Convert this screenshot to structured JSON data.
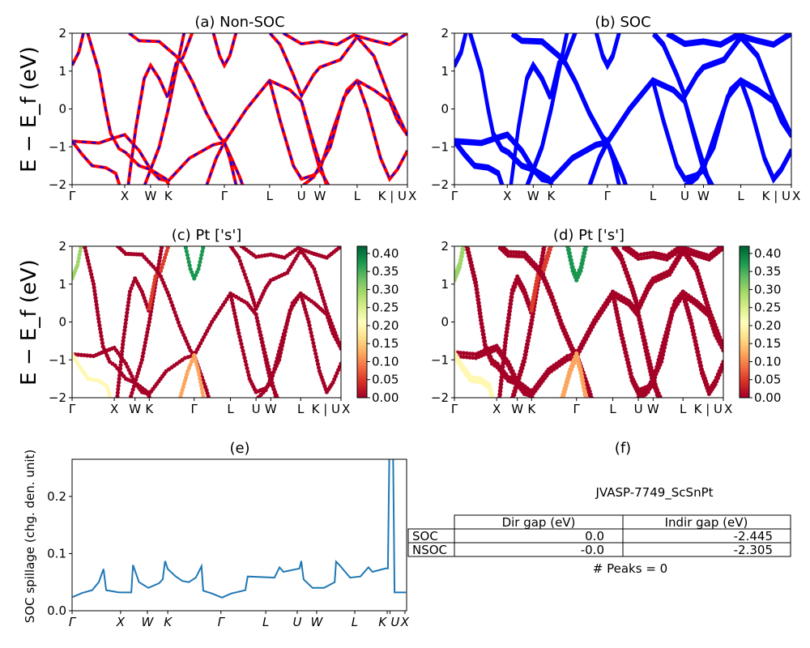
{
  "chart_data": {
    "type": "line",
    "band_structure": {
      "ylabel": "E − E_f (eV)",
      "ylim": [
        -2,
        2
      ],
      "yticks": [
        -2,
        -1,
        0,
        1,
        2
      ],
      "kticks": [
        0,
        0.157,
        0.234,
        0.287,
        0.454,
        0.589,
        0.684,
        0.739,
        0.85,
        0.965,
        1.0
      ],
      "klabels": [
        "Γ",
        "X",
        "W",
        "K",
        "Γ",
        "L",
        "U",
        "W",
        "L",
        "K | U",
        "X"
      ],
      "bands": [
        {
          "w": 0.0,
          "pts": [
            [
              0,
              -0.85
            ],
            [
              0.08,
              -0.9
            ],
            [
              0.12,
              -0.78
            ],
            [
              0.157,
              -0.68
            ],
            [
              0.2,
              -1.1
            ],
            [
              0.234,
              -1.6
            ],
            [
              0.26,
              -1.85
            ],
            [
              0.287,
              -1.9
            ],
            [
              0.35,
              -1.3
            ],
            [
              0.42,
              -0.95
            ],
            [
              0.454,
              -0.88
            ],
            [
              0.52,
              0.0
            ],
            [
              0.589,
              0.75
            ],
            [
              0.65,
              0.5
            ],
            [
              0.684,
              0.2
            ],
            [
              0.72,
              -1.0
            ],
            [
              0.739,
              -1.6
            ],
            [
              0.77,
              -2.1
            ]
          ]
        },
        {
          "w": 0.2,
          "pts": [
            [
              0,
              -0.85
            ],
            [
              0.03,
              -1.2
            ],
            [
              0.06,
              -1.5
            ],
            [
              0.1,
              -1.55
            ],
            [
              0.13,
              -1.7
            ],
            [
              0.145,
              -2.1
            ]
          ]
        },
        {
          "w": 0.3,
          "pts": [
            [
              0,
              1.15
            ],
            [
              0.02,
              1.5
            ],
            [
              0.035,
              2.05
            ]
          ]
        },
        {
          "w": 0.0,
          "pts": [
            [
              0.045,
              2.05
            ],
            [
              0.08,
              1.0
            ],
            [
              0.1,
              0.0
            ],
            [
              0.115,
              -0.65
            ],
            [
              0.14,
              -1.05
            ],
            [
              0.16,
              -1.15
            ],
            [
              0.2,
              -1.5
            ],
            [
              0.234,
              -1.6
            ],
            [
              0.28,
              -1.85
            ],
            [
              0.29,
              -2.05
            ]
          ]
        },
        {
          "w": 0.0,
          "pts": [
            [
              0.167,
              -2.05
            ],
            [
              0.19,
              -0.5
            ],
            [
              0.215,
              0.8
            ],
            [
              0.234,
              1.15
            ],
            [
              0.26,
              0.8
            ],
            [
              0.285,
              0.3
            ]
          ]
        },
        {
          "w": 0.0,
          "pts": [
            [
              0.215,
              -2.05
            ],
            [
              0.26,
              -1.0
            ],
            [
              0.287,
              0.0
            ],
            [
              0.31,
              1.0
            ],
            [
              0.335,
              2.05
            ]
          ]
        },
        {
          "w": 0.05,
          "pts": [
            [
              0.287,
              0.35
            ],
            [
              0.31,
              1.2
            ],
            [
              0.33,
              1.35
            ],
            [
              0.36,
              2.05
            ]
          ]
        },
        {
          "w": 0.0,
          "pts": [
            [
              0.17,
              2.0
            ],
            [
              0.2,
              1.8
            ],
            [
              0.26,
              1.78
            ],
            [
              0.31,
              1.4
            ],
            [
              0.33,
              1.2
            ],
            [
              0.36,
              0.7
            ],
            [
              0.4,
              -0.1
            ],
            [
              0.44,
              -0.75
            ],
            [
              0.454,
              -0.88
            ],
            [
              0.5,
              -1.8
            ],
            [
              0.51,
              -2.05
            ]
          ]
        },
        {
          "w": 0.38,
          "pts": [
            [
              0.42,
              2.05
            ],
            [
              0.44,
              1.4
            ],
            [
              0.454,
              1.15
            ],
            [
              0.47,
              1.4
            ],
            [
              0.49,
              2.05
            ]
          ]
        },
        {
          "w": 0.12,
          "pts": [
            [
              0.4,
              -2.05
            ],
            [
              0.43,
              -1.3
            ],
            [
              0.454,
              -0.88
            ],
            [
              0.47,
              -1.3
            ],
            [
              0.49,
              -2.05
            ]
          ]
        },
        {
          "w": 0.0,
          "pts": [
            [
              0.589,
              0.75
            ],
            [
              0.62,
              -0.3
            ],
            [
              0.66,
              -1.5
            ],
            [
              0.684,
              -1.85
            ],
            [
              0.72,
              -1.75
            ],
            [
              0.739,
              -1.6
            ],
            [
              0.78,
              -0.5
            ],
            [
              0.82,
              0.5
            ],
            [
              0.85,
              0.75
            ],
            [
              0.9,
              0.5
            ],
            [
              0.947,
              0.2
            ],
            [
              0.97,
              -0.3
            ],
            [
              1.0,
              -0.7
            ]
          ]
        },
        {
          "w": 0.0,
          "pts": [
            [
              0.59,
              2.0
            ],
            [
              0.62,
              1.7
            ],
            [
              0.66,
              0.9
            ],
            [
              0.684,
              0.35
            ],
            [
              0.72,
              0.9
            ],
            [
              0.739,
              1.1
            ],
            [
              0.8,
              1.3
            ],
            [
              0.85,
              1.9
            ],
            [
              0.9,
              1.4
            ],
            [
              0.947,
              0.3
            ],
            [
              1.0,
              -0.7
            ]
          ]
        },
        {
          "w": 0.0,
          "pts": [
            [
              0.63,
              2.0
            ],
            [
              0.684,
              1.72
            ],
            [
              0.739,
              1.78
            ],
            [
              0.79,
              1.7
            ],
            [
              0.84,
              1.95
            ],
            [
              0.9,
              1.8
            ],
            [
              0.947,
              1.7
            ],
            [
              1.0,
              2.0
            ]
          ]
        },
        {
          "w": 0.0,
          "pts": [
            [
              0.85,
              0.75
            ],
            [
              0.88,
              0.0
            ],
            [
              0.92,
              -1.3
            ],
            [
              0.947,
              -1.85
            ],
            [
              0.97,
              -1.6
            ],
            [
              1.0,
              -1.1
            ]
          ]
        },
        {
          "w": 0.0,
          "pts": [
            [
              0.684,
              -2.05
            ],
            [
              0.72,
              -1.8
            ],
            [
              0.77,
              -1.0
            ],
            [
              0.81,
              0.3
            ],
            [
              0.85,
              0.75
            ]
          ]
        },
        {
          "w": 0.0,
          "pts": [
            [
              0.684,
              0.2
            ],
            [
              0.72,
              -0.9
            ],
            [
              0.76,
              -2.05
            ]
          ]
        }
      ]
    },
    "panels": [
      {
        "id": "a",
        "title": "(a) Non-SOC",
        "type": "line",
        "colors": [
          "#ff0000",
          "#0000ff"
        ]
      },
      {
        "id": "b",
        "title": "(b) SOC",
        "type": "line",
        "colors": [
          "#0000ff"
        ]
      },
      {
        "id": "c",
        "title": "(c)  Pt ['s']",
        "type": "scatter",
        "colorbar": {
          "range": [
            0,
            0.42
          ],
          "ticks": [
            "0.00",
            "0.05",
            "0.10",
            "0.15",
            "0.20",
            "0.25",
            "0.30",
            "0.35",
            "0.40"
          ],
          "colormap": "RdYlGn"
        }
      },
      {
        "id": "d",
        "title": "(d) Pt ['s']",
        "type": "scatter",
        "colorbar": {
          "range": [
            0,
            0.42
          ],
          "ticks": [
            "0.00",
            "0.05",
            "0.10",
            "0.15",
            "0.20",
            "0.25",
            "0.30",
            "0.35",
            "0.40"
          ],
          "colormap": "RdYlGn"
        }
      }
    ],
    "spillage": {
      "title": "(e)",
      "type": "line",
      "ylabel": "SOC spillage (chg. den. unit)",
      "ylim": [
        0,
        0.265
      ],
      "yticks": [
        "0.0",
        "0.1",
        "0.2"
      ],
      "kticks": [
        0,
        0.145,
        0.225,
        0.286,
        0.445,
        0.579,
        0.673,
        0.731,
        0.845,
        0.942,
        0.95,
        0.995
      ],
      "klabels": [
        "Γ",
        "X",
        "W",
        "K",
        "Γ",
        "L",
        "U",
        "W",
        "L",
        "K",
        "U",
        "X"
      ],
      "color": "#1f77b4",
      "x": [
        0.002,
        0.03,
        0.06,
        0.08,
        0.094,
        0.102,
        0.14,
        0.177,
        0.182,
        0.2,
        0.228,
        0.26,
        0.271,
        0.278,
        0.286,
        0.31,
        0.33,
        0.349,
        0.37,
        0.387,
        0.392,
        0.419,
        0.448,
        0.475,
        0.518,
        0.525,
        0.605,
        0.62,
        0.632,
        0.68,
        0.685,
        0.692,
        0.719,
        0.753,
        0.785,
        0.789,
        0.799,
        0.831,
        0.862,
        0.886,
        0.898,
        0.937,
        0.944,
        0.949,
        0.959,
        0.964,
        0.998
      ],
      "y": [
        0.024,
        0.031,
        0.036,
        0.05,
        0.073,
        0.036,
        0.032,
        0.032,
        0.08,
        0.05,
        0.04,
        0.048,
        0.055,
        0.087,
        0.073,
        0.06,
        0.052,
        0.05,
        0.058,
        0.078,
        0.035,
        0.03,
        0.023,
        0.03,
        0.036,
        0.06,
        0.058,
        0.076,
        0.068,
        0.074,
        0.087,
        0.055,
        0.04,
        0.04,
        0.05,
        0.086,
        0.08,
        0.058,
        0.06,
        0.076,
        0.068,
        0.074,
        0.074,
        0.3,
        0.3,
        0.032,
        0.032
      ]
    }
  },
  "info": {
    "title": "(f)",
    "material": "JVASP-7749_ScSnPt",
    "table": {
      "headers": [
        "Dir gap (eV)",
        "Indir gap (eV)"
      ],
      "rows": [
        {
          "label": "SOC",
          "dir": "0.0",
          "indir": "-2.445"
        },
        {
          "label": "NSOC",
          "dir": "-0.0",
          "indir": "-2.305"
        }
      ]
    },
    "peaks": "# Peaks = 0"
  }
}
